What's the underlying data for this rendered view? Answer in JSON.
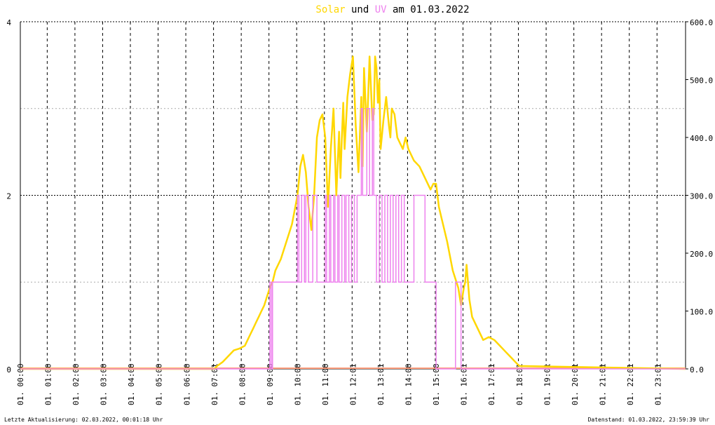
{
  "title": {
    "part1": "Solar",
    "part2": " und ",
    "part3": "UV",
    "part4": " am 01.03.2022",
    "color_solar": "#ffd700",
    "color_uv": "#ee82ee"
  },
  "footer": {
    "left": "Letzte Aktualisierung: 02.03.2022, 00:01:18 Uhr",
    "right": "Datenstand: 01.03.2022, 23:59:39 Uhr"
  },
  "chart_data": {
    "type": "line",
    "x_unit": "hours",
    "xlim": [
      0,
      24
    ],
    "y_left": {
      "ylim": [
        0,
        4
      ],
      "ticks": [
        "0",
        "2",
        "4"
      ],
      "grid_major": [
        2,
        4
      ],
      "grid_minor": [
        1,
        3
      ]
    },
    "y_right": {
      "ylim": [
        0,
        600
      ],
      "ticks": [
        "0.0",
        "100.0",
        "200.0",
        "300.0",
        "400.0",
        "500.0",
        "600.0"
      ]
    },
    "x_ticks": [
      "01. 00:00",
      "01. 01:00",
      "01. 02:00",
      "01. 03:00",
      "01. 04:00",
      "01. 05:00",
      "01. 06:00",
      "01. 07:01",
      "01. 08:00",
      "01. 09:00",
      "01. 10:00",
      "01. 11:00",
      "01. 12:01",
      "01. 13:01",
      "01. 14:00",
      "01. 15:00",
      "01. 16:01",
      "01. 17:01",
      "01. 18:01",
      "01. 19:01",
      "01. 20:01",
      "01. 21:01",
      "01. 22:01",
      "01. 23:01"
    ],
    "grid": true,
    "colors": {
      "baseline": "#ff9f7f",
      "solar": "#ffd700",
      "uv": "#ee82ee"
    },
    "series": [
      {
        "axis": "right",
        "x": [
          0,
          7.0,
          7.1,
          7.3,
          7.5,
          7.7,
          7.9,
          8.1,
          8.2,
          8.3,
          8.4,
          8.5,
          8.6,
          8.7,
          8.8,
          8.9,
          9.0,
          9.1,
          9.2,
          9.4,
          9.6,
          9.8,
          10.0,
          10.1,
          10.2,
          10.3,
          10.4,
          10.5,
          10.6,
          10.7,
          10.8,
          10.9,
          11.0,
          11.1,
          11.2,
          11.3,
          11.4,
          11.5,
          11.55,
          11.6,
          11.65,
          11.7,
          11.8,
          11.9,
          12.0,
          12.1,
          12.2,
          12.3,
          12.35,
          12.4,
          12.5,
          12.55,
          12.6,
          12.7,
          12.75,
          12.8,
          12.85,
          12.9,
          12.95,
          13.0,
          13.1,
          13.2,
          13.3,
          13.35,
          13.4,
          13.5,
          13.6,
          13.7,
          13.8,
          13.9,
          14.0,
          14.2,
          14.4,
          14.6,
          14.8,
          14.9,
          15.0,
          15.1,
          15.2,
          15.4,
          15.6,
          15.8,
          15.9,
          16.0,
          16.05,
          16.1,
          16.2,
          16.3,
          16.5,
          16.7,
          16.9,
          17.1,
          17.3,
          17.5,
          17.7,
          17.9,
          18.0,
          24
        ],
        "values": [
          0,
          0,
          5,
          12,
          22,
          32,
          35,
          40,
          50,
          60,
          70,
          80,
          90,
          100,
          110,
          125,
          140,
          150,
          170,
          190,
          220,
          250,
          300,
          350,
          370,
          340,
          280,
          240,
          300,
          400,
          430,
          440,
          400,
          280,
          380,
          450,
          300,
          410,
          330,
          400,
          460,
          380,
          470,
          510,
          540,
          420,
          340,
          470,
          350,
          520,
          410,
          470,
          540,
          430,
          440,
          540,
          520,
          460,
          500,
          380,
          430,
          470,
          420,
          400,
          450,
          440,
          400,
          390,
          380,
          400,
          380,
          360,
          350,
          330,
          310,
          320,
          320,
          280,
          260,
          220,
          170,
          140,
          110,
          140,
          150,
          180,
          120,
          90,
          70,
          50,
          55,
          50,
          40,
          30,
          20,
          10,
          5,
          0
        ]
      },
      {
        "axis": "left",
        "x": [
          0,
          8.75,
          8.75,
          9.0,
          9.0,
          9.05,
          9.05,
          9.1,
          9.1,
          10.0,
          10.0,
          10.05,
          10.05,
          10.15,
          10.15,
          10.25,
          10.25,
          10.3,
          10.3,
          10.4,
          10.4,
          10.55,
          10.55,
          10.7,
          10.7,
          11.0,
          11.0,
          11.05,
          11.05,
          11.15,
          11.15,
          11.2,
          11.2,
          11.3,
          11.3,
          11.35,
          11.35,
          11.45,
          11.45,
          11.5,
          11.5,
          11.6,
          11.6,
          11.7,
          11.7,
          11.75,
          11.75,
          11.85,
          11.85,
          11.95,
          11.95,
          12.05,
          12.05,
          12.15,
          12.15,
          12.3,
          12.3,
          12.35,
          12.35,
          12.5,
          12.5,
          12.6,
          12.6,
          12.7,
          12.7,
          12.75,
          12.75,
          12.85,
          12.85,
          12.95,
          12.95,
          13.05,
          13.05,
          13.15,
          13.15,
          13.25,
          13.25,
          13.35,
          13.35,
          13.45,
          13.45,
          13.55,
          13.55,
          13.65,
          13.65,
          13.75,
          13.75,
          13.85,
          13.85,
          14.2,
          14.2,
          14.6,
          14.6,
          15.0,
          15.0,
          15.7,
          15.7,
          15.9,
          15.9,
          24
        ],
        "values": [
          0,
          0,
          0,
          0,
          1,
          1,
          0,
          0,
          1,
          1,
          2,
          2,
          1,
          1,
          2,
          2,
          1,
          1,
          2,
          2,
          1,
          1,
          2,
          2,
          1,
          1,
          2,
          2,
          1,
          1,
          2,
          2,
          1,
          1,
          2,
          2,
          1,
          1,
          2,
          2,
          1,
          1,
          2,
          2,
          1,
          1,
          2,
          2,
          1,
          1,
          2,
          2,
          1,
          1,
          2,
          2,
          3,
          3,
          2,
          2,
          3,
          3,
          2,
          2,
          3,
          3,
          2,
          2,
          1,
          1,
          2,
          2,
          1,
          1,
          2,
          2,
          1,
          1,
          2,
          2,
          1,
          1,
          2,
          2,
          1,
          1,
          2,
          2,
          1,
          1,
          2,
          2,
          1,
          1,
          0,
          0,
          1,
          1,
          0,
          0
        ]
      }
    ]
  }
}
